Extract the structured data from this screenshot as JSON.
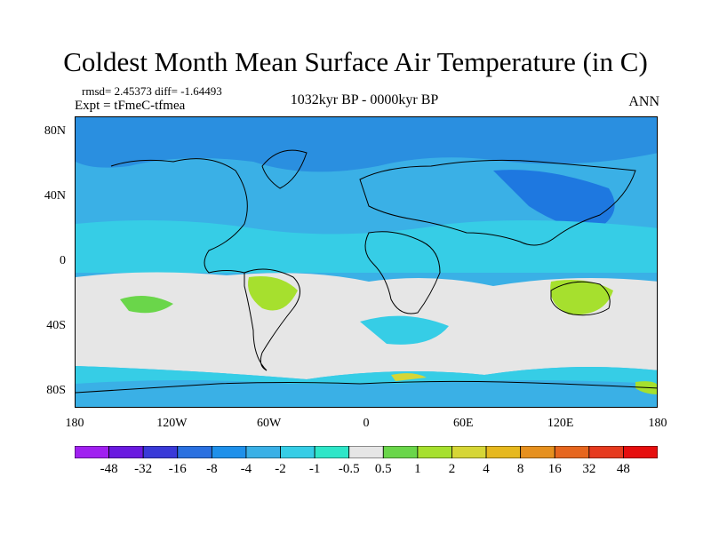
{
  "title": "Coldest Month Mean Surface Air Temperature (in C)",
  "stats": "rmsd= 2.45373 diff= -1.64493",
  "experiment": "Expt = tFmeC-tfmea",
  "period": "1032kyr BP - 0000kyr BP",
  "season": "ANN",
  "map": {
    "projection": "cylindrical-equidistant",
    "lon_range": [
      -180,
      180
    ],
    "lat_range": [
      -90,
      90
    ],
    "lat_tick_labels": [
      "80N",
      "40N",
      "0",
      "40S",
      "80S"
    ],
    "lat_tick_values": [
      80,
      40,
      0,
      -40,
      -80
    ],
    "lon_tick_labels": [
      "180",
      "120W",
      "60W",
      "0",
      "60E",
      "120E",
      "180"
    ],
    "lon_tick_values": [
      -180,
      -120,
      -60,
      0,
      60,
      120,
      180
    ]
  },
  "colorbar": {
    "labels": [
      "-48",
      "-32",
      "-16",
      "-8",
      "-4",
      "-2",
      "-1",
      "-0.5",
      "0.5",
      "1",
      "2",
      "4",
      "8",
      "16",
      "32",
      "48"
    ],
    "colors": [
      "#a020f0",
      "#6a1ae0",
      "#3a3ad8",
      "#2a70e0",
      "#1e90ea",
      "#3ab0e6",
      "#36cde6",
      "#2ee6c8",
      "#e6e6e6",
      "#6ad64a",
      "#a6e02e",
      "#d6d636",
      "#e6b81e",
      "#e6901e",
      "#e6661e",
      "#e63a1e",
      "#e60e0e"
    ]
  }
}
